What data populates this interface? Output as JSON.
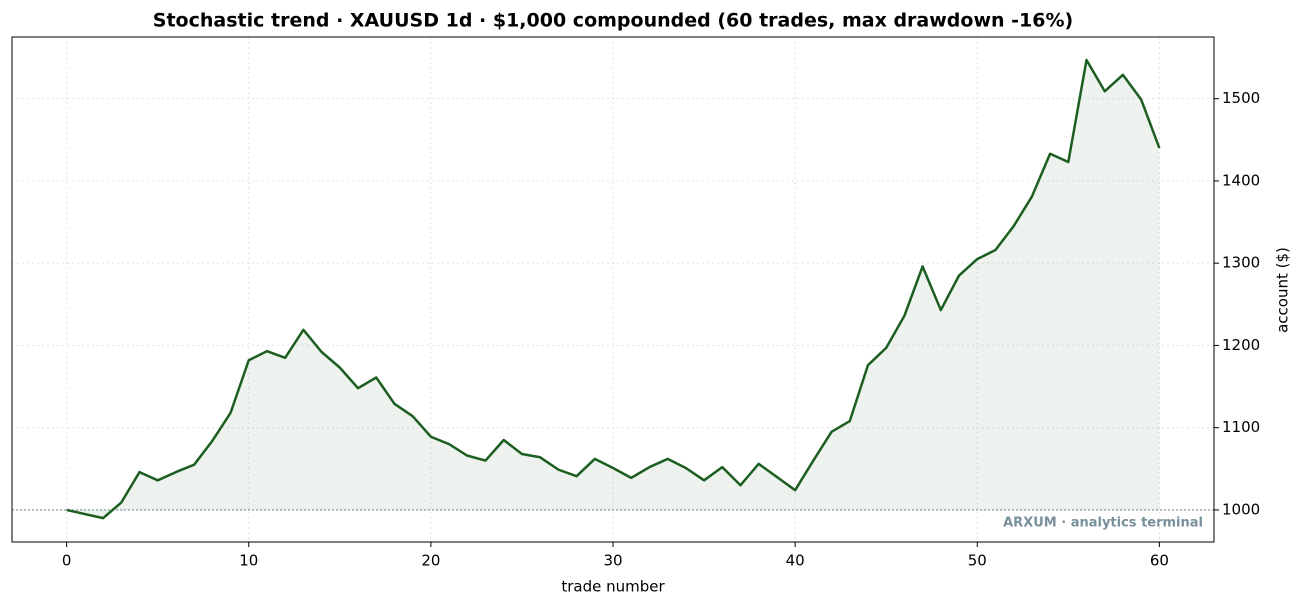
{
  "chart_data": {
    "type": "line",
    "title": "Stochastic trend · XAUUSD 1d · $1,000 compounded (60 trades, max drawdown -16%)",
    "xlabel": "trade number",
    "ylabel": "account ($)",
    "watermark": "ARXUM · analytics terminal",
    "x": [
      0,
      1,
      2,
      3,
      4,
      5,
      6,
      7,
      8,
      9,
      10,
      11,
      12,
      13,
      14,
      15,
      16,
      17,
      18,
      19,
      20,
      21,
      22,
      23,
      24,
      25,
      26,
      27,
      28,
      29,
      30,
      31,
      32,
      33,
      34,
      35,
      36,
      37,
      38,
      39,
      40,
      41,
      42,
      43,
      44,
      45,
      46,
      47,
      48,
      49,
      50,
      51,
      52,
      53,
      54,
      55,
      56,
      57,
      58,
      59,
      60
    ],
    "values": [
      1000,
      995,
      990,
      1009,
      1046,
      1036,
      1046,
      1055,
      1084,
      1118,
      1182,
      1193,
      1185,
      1219,
      1192,
      1173,
      1148,
      1161,
      1129,
      1114,
      1089,
      1080,
      1066,
      1060,
      1085,
      1068,
      1064,
      1049,
      1041,
      1062,
      1051,
      1039,
      1052,
      1062,
      1051,
      1036,
      1052,
      1030,
      1056,
      1040,
      1024,
      1060,
      1095,
      1108,
      1176,
      1197,
      1236,
      1296,
      1243,
      1285,
      1305,
      1316,
      1345,
      1381,
      1433,
      1423,
      1547,
      1509,
      1529,
      1499,
      1440
    ],
    "color": "#1b5e20",
    "baseline": 1000,
    "xlim": [
      -3,
      63
    ],
    "ylim": [
      961,
      1575
    ],
    "xticks": [
      0,
      10,
      20,
      30,
      40,
      50,
      60
    ],
    "yticks": [
      1000,
      1100,
      1200,
      1300,
      1400,
      1500
    ],
    "grid": true
  }
}
